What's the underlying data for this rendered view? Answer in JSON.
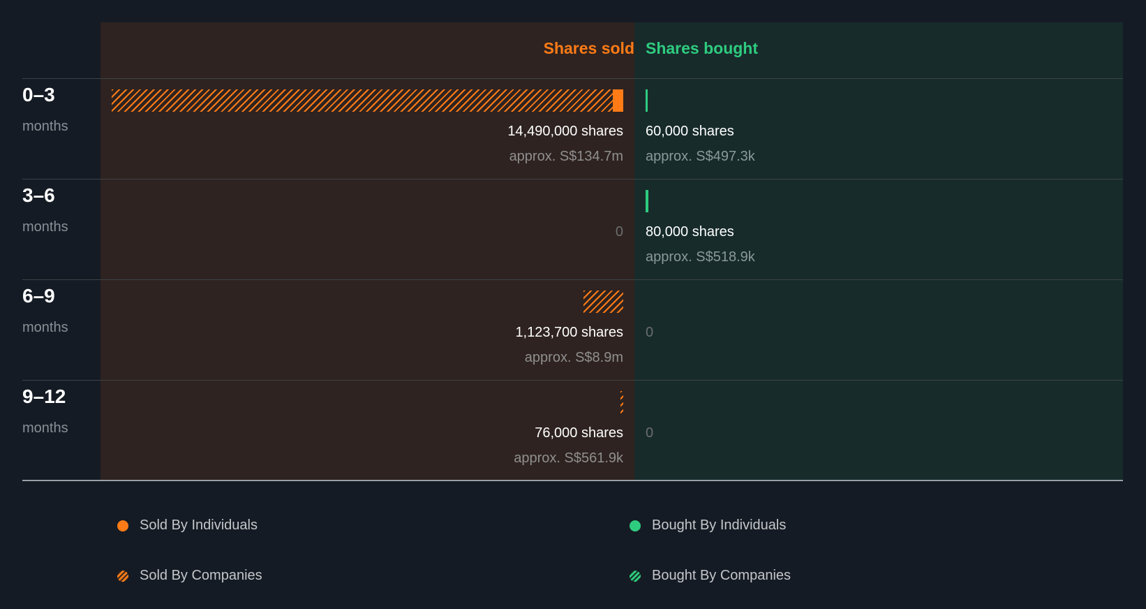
{
  "chart_data": {
    "type": "bar",
    "title": "",
    "columns": {
      "sold": "Shares sold",
      "bought": "Shares bought"
    },
    "categories": [
      {
        "period": "0–3",
        "unit": "months"
      },
      {
        "period": "3–6",
        "unit": "months"
      },
      {
        "period": "6–9",
        "unit": "months"
      },
      {
        "period": "9–12",
        "unit": "months"
      }
    ],
    "series": [
      {
        "name": "Sold By Individuals",
        "values": [
          300000,
          0,
          0,
          0
        ]
      },
      {
        "name": "Sold By Companies",
        "values": [
          14190000,
          0,
          1123700,
          76000
        ]
      },
      {
        "name": "Bought By Individuals",
        "values": [
          60000,
          80000,
          0,
          0
        ]
      },
      {
        "name": "Bought By Companies",
        "values": [
          0,
          0,
          0,
          0
        ]
      }
    ],
    "sold_labels": [
      {
        "shares": "14,490,000 shares",
        "approx": "approx. S$134.7m"
      },
      {
        "shares": "0",
        "approx": ""
      },
      {
        "shares": "1,123,700 shares",
        "approx": "approx. S$8.9m"
      },
      {
        "shares": "76,000 shares",
        "approx": "approx. S$561.9k"
      }
    ],
    "bought_labels": [
      {
        "shares": "60,000 shares",
        "approx": "approx. S$497.3k"
      },
      {
        "shares": "80,000 shares",
        "approx": "approx. S$518.9k"
      },
      {
        "shares": "0",
        "approx": ""
      },
      {
        "shares": "0",
        "approx": ""
      }
    ],
    "legend": [
      "Sold By Individuals",
      "Bought By Individuals",
      "Sold By Companies",
      "Bought By Companies"
    ],
    "colors": {
      "sold": "#ff7b16",
      "bought": "#2ecc7f"
    }
  }
}
